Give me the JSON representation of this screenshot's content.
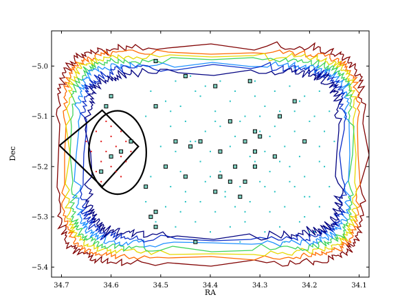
{
  "chart_data": {
    "type": "scatter",
    "title": "",
    "xlabel": "RA",
    "ylabel": "Dec",
    "xlim": [
      34.72,
      34.08
    ],
    "ylim": [
      -5.42,
      -4.93
    ],
    "x_inverted": true,
    "grid": false,
    "legend": "none",
    "x_ticks": [
      {
        "value": 34.7,
        "label": "34.7"
      },
      {
        "value": 34.6,
        "label": "34.6"
      },
      {
        "value": 34.5,
        "label": "34.5"
      },
      {
        "value": 34.4,
        "label": "34.4"
      },
      {
        "value": 34.3,
        "label": "34.3"
      },
      {
        "value": 34.2,
        "label": "34.2"
      },
      {
        "value": 34.1,
        "label": "34.1"
      }
    ],
    "y_ticks": [
      {
        "value": -5.0,
        "label": "−5.0"
      },
      {
        "value": -5.1,
        "label": "−5.1"
      },
      {
        "value": -5.2,
        "label": "−5.2"
      },
      {
        "value": -5.3,
        "label": "−5.3"
      },
      {
        "value": -5.4,
        "label": "−5.4"
      }
    ],
    "contours": [
      {
        "level": 1,
        "color": "#800000",
        "ra_min": 34.704,
        "ra_max": 34.092,
        "dec_min": -5.392,
        "dec_max": -4.962,
        "roughness": 0.007
      },
      {
        "level": 2,
        "color": "#ff6a00",
        "ra_min": 34.695,
        "ra_max": 34.101,
        "dec_min": -5.381,
        "dec_max": -4.972,
        "roughness": 0.006
      },
      {
        "level": 3,
        "color": "#e6d800",
        "ra_min": 34.687,
        "ra_max": 34.108,
        "dec_min": -5.372,
        "dec_max": -4.98,
        "roughness": 0.006
      },
      {
        "level": 4,
        "color": "#3cd35a",
        "ra_min": 34.678,
        "ra_max": 34.116,
        "dec_min": -5.364,
        "dec_max": -4.988,
        "roughness": 0.006
      },
      {
        "level": 5,
        "color": "#1e90ff",
        "ra_min": 34.667,
        "ra_max": 34.124,
        "dec_min": -5.354,
        "dec_max": -4.996,
        "roughness": 0.007
      },
      {
        "level": 6,
        "color": "#0a2dc8",
        "ra_min": 34.656,
        "ra_max": 34.132,
        "dec_min": -5.345,
        "dec_max": -5.004,
        "roughness": 0.008
      },
      {
        "level": 7,
        "color": "#000080",
        "ra_min": 34.646,
        "ra_max": 34.14,
        "dec_min": -5.337,
        "dec_max": -5.012,
        "roughness": 0.009
      }
    ],
    "selection_region": {
      "circle": {
        "center_ra": 34.587,
        "center_dec": -5.172,
        "radius_ra": 0.058,
        "radius_dec": -0.083
      },
      "wedge": [
        [
          34.704,
          -5.158
        ],
        [
          34.618,
          -5.088
        ],
        [
          34.545,
          -5.16
        ],
        [
          34.618,
          -5.24
        ],
        [
          34.704,
          -5.158
        ]
      ]
    },
    "points_cyan": [
      [
        34.47,
        -5.03
      ],
      [
        34.44,
        -5.02
      ],
      [
        34.41,
        -5.04
      ],
      [
        34.38,
        -5.03
      ],
      [
        34.35,
        -5.05
      ],
      [
        34.31,
        -5.03
      ],
      [
        34.27,
        -5.05
      ],
      [
        34.24,
        -5.04
      ],
      [
        34.21,
        -5.06
      ],
      [
        34.18,
        -5.05
      ],
      [
        34.49,
        -5.07
      ],
      [
        34.46,
        -5.08
      ],
      [
        34.42,
        -5.06
      ],
      [
        34.39,
        -5.09
      ],
      [
        34.36,
        -5.07
      ],
      [
        34.33,
        -5.1
      ],
      [
        34.29,
        -5.08
      ],
      [
        34.26,
        -5.09
      ],
      [
        34.22,
        -5.07
      ],
      [
        34.19,
        -5.1
      ],
      [
        34.48,
        -5.12
      ],
      [
        34.45,
        -5.11
      ],
      [
        34.41,
        -5.13
      ],
      [
        34.38,
        -5.12
      ],
      [
        34.34,
        -5.11
      ],
      [
        34.3,
        -5.13
      ],
      [
        34.27,
        -5.12
      ],
      [
        34.23,
        -5.13
      ],
      [
        34.2,
        -5.11
      ],
      [
        34.17,
        -5.13
      ],
      [
        34.5,
        -5.16
      ],
      [
        34.47,
        -5.17
      ],
      [
        34.43,
        -5.15
      ],
      [
        34.4,
        -5.17
      ],
      [
        34.36,
        -5.16
      ],
      [
        34.33,
        -5.15
      ],
      [
        34.29,
        -5.17
      ],
      [
        34.25,
        -5.16
      ],
      [
        34.22,
        -5.18
      ],
      [
        34.18,
        -5.16
      ],
      [
        34.49,
        -5.2
      ],
      [
        34.46,
        -5.21
      ],
      [
        34.42,
        -5.19
      ],
      [
        34.38,
        -5.21
      ],
      [
        34.35,
        -5.2
      ],
      [
        34.31,
        -5.19
      ],
      [
        34.28,
        -5.21
      ],
      [
        34.24,
        -5.2
      ],
      [
        34.21,
        -5.22
      ],
      [
        34.17,
        -5.2
      ],
      [
        34.48,
        -5.24
      ],
      [
        34.45,
        -5.25
      ],
      [
        34.41,
        -5.23
      ],
      [
        34.37,
        -5.25
      ],
      [
        34.34,
        -5.24
      ],
      [
        34.3,
        -5.23
      ],
      [
        34.27,
        -5.25
      ],
      [
        34.23,
        -5.24
      ],
      [
        34.2,
        -5.26
      ],
      [
        34.16,
        -5.24
      ],
      [
        34.49,
        -5.28
      ],
      [
        34.46,
        -5.29
      ],
      [
        34.42,
        -5.27
      ],
      [
        34.39,
        -5.29
      ],
      [
        34.35,
        -5.28
      ],
      [
        34.32,
        -5.27
      ],
      [
        34.28,
        -5.29
      ],
      [
        34.25,
        -5.28
      ],
      [
        34.21,
        -5.3
      ],
      [
        34.18,
        -5.28
      ],
      [
        34.47,
        -5.32
      ],
      [
        34.43,
        -5.31
      ],
      [
        34.4,
        -5.33
      ],
      [
        34.36,
        -5.32
      ],
      [
        34.33,
        -5.31
      ],
      [
        34.29,
        -5.33
      ],
      [
        34.26,
        -5.32
      ],
      [
        34.22,
        -5.31
      ],
      [
        34.19,
        -5.33
      ],
      [
        34.52,
        -5.05
      ],
      [
        34.53,
        -5.1
      ],
      [
        34.52,
        -5.22
      ],
      [
        34.53,
        -5.27
      ],
      [
        34.51,
        -5.31
      ],
      [
        34.44,
        -5.15
      ],
      [
        34.32,
        -5.18
      ],
      [
        34.28,
        -5.14
      ],
      [
        34.24,
        -5.23
      ],
      [
        34.37,
        -5.26
      ],
      [
        34.31,
        -5.06
      ],
      [
        34.43,
        -5.05
      ],
      [
        34.35,
        -5.14
      ],
      [
        34.26,
        -5.19
      ],
      [
        34.4,
        -5.22
      ],
      [
        34.45,
        -5.27
      ],
      [
        34.33,
        -5.29
      ],
      [
        34.21,
        -5.26
      ],
      [
        34.18,
        -5.19
      ],
      [
        34.15,
        -5.15
      ],
      [
        34.48,
        -5.09
      ],
      [
        34.39,
        -5.11
      ],
      [
        34.3,
        -5.1
      ],
      [
        34.23,
        -5.09
      ],
      [
        34.16,
        -5.09
      ],
      [
        34.43,
        -5.35
      ],
      [
        34.34,
        -5.35
      ],
      [
        34.25,
        -5.35
      ],
      [
        34.2,
        -5.33
      ],
      [
        34.29,
        -5.24
      ]
    ],
    "points_red": [
      [
        34.63,
        -5.13
      ],
      [
        34.62,
        -5.15
      ],
      [
        34.61,
        -5.17
      ],
      [
        34.6,
        -5.14
      ],
      [
        34.59,
        -5.16
      ],
      [
        34.58,
        -5.18
      ],
      [
        34.57,
        -5.15
      ],
      [
        34.62,
        -5.19
      ],
      [
        34.6,
        -5.2
      ],
      [
        34.58,
        -5.13
      ],
      [
        34.61,
        -5.11
      ],
      [
        34.64,
        -5.17
      ],
      [
        34.59,
        -5.21
      ],
      [
        34.56,
        -5.17
      ],
      [
        34.63,
        -5.21
      ],
      [
        34.6,
        -5.12
      ],
      [
        34.57,
        -5.19
      ],
      [
        34.62,
        -5.23
      ],
      [
        34.65,
        -5.15
      ],
      [
        34.58,
        -5.22
      ]
    ],
    "squares": [
      [
        34.51,
        -4.99
      ],
      [
        34.45,
        -5.02
      ],
      [
        34.39,
        -5.04
      ],
      [
        34.32,
        -5.03
      ],
      [
        34.6,
        -5.06
      ],
      [
        34.61,
        -5.08
      ],
      [
        34.51,
        -5.08
      ],
      [
        34.36,
        -5.11
      ],
      [
        34.26,
        -5.1
      ],
      [
        34.23,
        -5.07
      ],
      [
        34.31,
        -5.13
      ],
      [
        34.3,
        -5.14
      ],
      [
        34.33,
        -5.15
      ],
      [
        34.47,
        -5.15
      ],
      [
        34.44,
        -5.16
      ],
      [
        34.42,
        -5.15
      ],
      [
        34.38,
        -5.17
      ],
      [
        34.31,
        -5.17
      ],
      [
        34.27,
        -5.18
      ],
      [
        34.21,
        -5.15
      ],
      [
        34.56,
        -5.15
      ],
      [
        34.58,
        -5.17
      ],
      [
        34.6,
        -5.18
      ],
      [
        34.62,
        -5.21
      ],
      [
        34.35,
        -5.2
      ],
      [
        34.31,
        -5.2
      ],
      [
        34.49,
        -5.2
      ],
      [
        34.45,
        -5.22
      ],
      [
        34.38,
        -5.22
      ],
      [
        34.36,
        -5.23
      ],
      [
        34.33,
        -5.23
      ],
      [
        34.39,
        -5.25
      ],
      [
        34.34,
        -5.26
      ],
      [
        34.53,
        -5.24
      ],
      [
        34.51,
        -5.29
      ],
      [
        34.52,
        -5.3
      ],
      [
        34.51,
        -5.32
      ],
      [
        34.43,
        -5.35
      ]
    ]
  }
}
